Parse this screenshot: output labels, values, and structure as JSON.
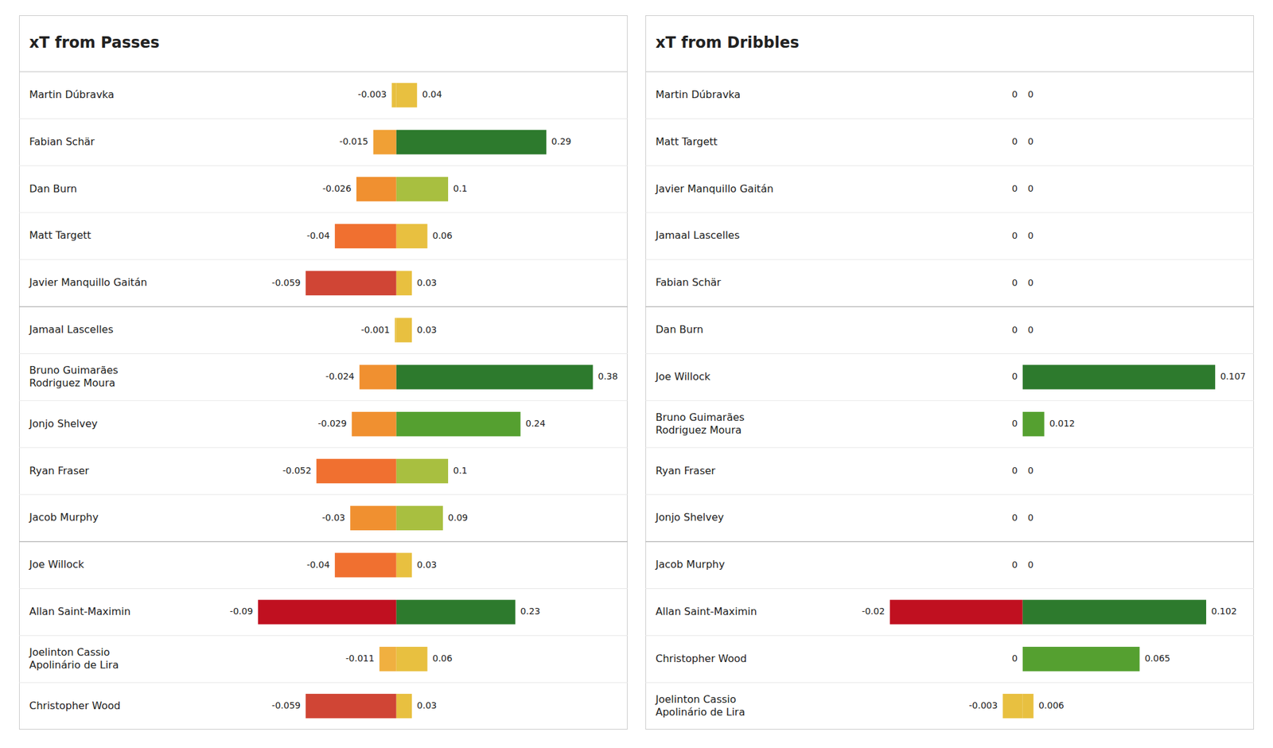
{
  "chart_data": [
    {
      "type": "bar",
      "orientation": "horizontal",
      "title": "xT from Passes",
      "categories": [
        "Martin Dúbravka",
        "Fabian Schär",
        "Dan Burn",
        "Matt Targett",
        "Javier Manquillo Gaitán",
        "Jamaal Lascelles",
        "Bruno Guimarães\nRodriguez Moura",
        "Jonjo Shelvey",
        "Ryan Fraser",
        "Jacob Murphy",
        "Joe Willock",
        "Allan Saint-Maximin",
        "Joelinton Cassio\nApolinário de Lira",
        "Christopher Wood"
      ],
      "series": [
        {
          "values": [
            -0.003,
            -0.015,
            -0.026,
            -0.04,
            -0.059,
            -0.001,
            -0.024,
            -0.029,
            -0.052,
            -0.03,
            -0.04,
            -0.09,
            -0.011,
            -0.059
          ],
          "colors": [
            "#e8c040",
            "#f0a035",
            "#f09030",
            "#f07030",
            "#d04535",
            "#e8c040",
            "#f09030",
            "#f09030",
            "#f07030",
            "#f09030",
            "#f07030",
            "#c01020",
            "#f0b040",
            "#d04535"
          ]
        },
        {
          "values": [
            0.04,
            0.29,
            0.1,
            0.06,
            0.03,
            0.03,
            0.38,
            0.24,
            0.1,
            0.09,
            0.03,
            0.23,
            0.06,
            0.03
          ],
          "colors": [
            "#e8c040",
            "#2d7a2d",
            "#a8bf40",
            "#e8c040",
            "#e8c040",
            "#e8c040",
            "#2d7a2d",
            "#55a030",
            "#a8bf40",
            "#a8bf40",
            "#e8c040",
            "#2d7a2d",
            "#e8c040",
            "#e8c040"
          ]
        }
      ],
      "xlim": [
        -0.095,
        0.4
      ],
      "tick_labels": false,
      "grid": false,
      "data_labels": true
    },
    {
      "type": "bar",
      "orientation": "horizontal",
      "title": "xT from Dribbles",
      "categories": [
        "Martin Dúbravka",
        "Matt Targett",
        "Javier Manquillo Gaitán",
        "Jamaal Lascelles",
        "Fabian Schär",
        "Dan Burn",
        "Joe Willock",
        "Bruno Guimarães\nRodriguez Moura",
        "Ryan Fraser",
        "Jonjo Shelvey",
        "Jacob Murphy",
        "Allan Saint-Maximin",
        "Christopher Wood",
        "Joelinton Cassio\nApolinário de Lira"
      ],
      "series": [
        {
          "values": [
            0,
            0,
            0,
            0,
            0,
            0,
            0,
            0,
            0,
            0,
            0,
            -0.02,
            0,
            -0.003
          ],
          "colors": [
            "#ffffff",
            "#ffffff",
            "#ffffff",
            "#ffffff",
            "#ffffff",
            "#ffffff",
            "#ffffff",
            "#ffffff",
            "#ffffff",
            "#ffffff",
            "#ffffff",
            "#c01020",
            "#ffffff",
            "#e8c040"
          ]
        },
        {
          "values": [
            0,
            0,
            0,
            0,
            0,
            0,
            0.107,
            0.012,
            0,
            0,
            0,
            0.102,
            0.065,
            0.006
          ],
          "colors": [
            "#ffffff",
            "#ffffff",
            "#ffffff",
            "#ffffff",
            "#ffffff",
            "#ffffff",
            "#2d7a2d",
            "#55a030",
            "#ffffff",
            "#ffffff",
            "#ffffff",
            "#2d7a2d",
            "#55a030",
            "#e8c040"
          ]
        }
      ],
      "xlim": [
        -0.022,
        0.115
      ],
      "tick_labels": false,
      "grid": false,
      "data_labels": true
    }
  ]
}
